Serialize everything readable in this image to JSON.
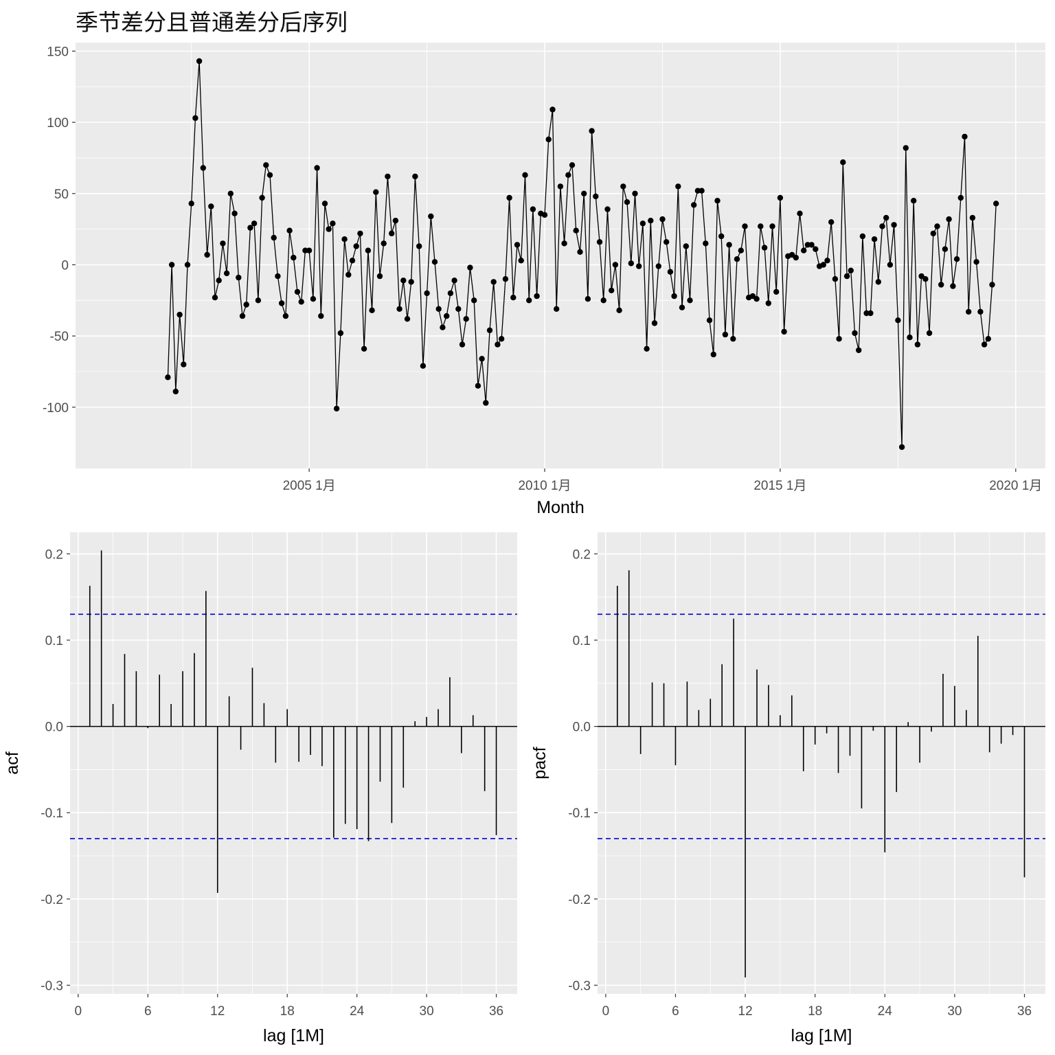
{
  "title": "季节差分且普通差分后序列",
  "colors": {
    "panel_bg": "#ebebeb",
    "grid": "#ffffff",
    "series": "#000000",
    "ci_line": "#0000cc"
  },
  "chart_data": [
    {
      "type": "line",
      "markers": true,
      "xlabel": "Month",
      "ylabel": "",
      "x_tick_labels": [
        "2005 1月",
        "2010 1月",
        "2015 1月",
        "2020 1月"
      ],
      "x_tick_values": [
        2005.0,
        2010.0,
        2015.0,
        2020.0
      ],
      "xlim": [
        2000.04,
        2020.63
      ],
      "ylim": [
        -143,
        156
      ],
      "y_ticks": [
        -100,
        -50,
        0,
        50,
        100,
        150
      ],
      "y_tick_labels": [
        "-100",
        "-50",
        "0",
        "50",
        "100",
        "150"
      ],
      "grid": true,
      "start": 2002.0,
      "step_months": 1,
      "values": [
        -79,
        0,
        -89,
        -35,
        -70,
        0,
        43,
        103,
        143,
        68,
        7,
        41,
        -23,
        -11,
        15,
        -6,
        50,
        36,
        -9,
        -36,
        -28,
        26,
        29,
        -25,
        47,
        70,
        63,
        19,
        -8,
        -27,
        -36,
        24,
        5,
        -19,
        -26,
        10,
        10,
        -24,
        68,
        -36,
        43,
        25,
        29,
        -101,
        -48,
        18,
        -7,
        3,
        13,
        22,
        -59,
        10,
        -32,
        51,
        -8,
        15,
        62,
        22,
        31,
        -31,
        -11,
        -38,
        -12,
        62,
        13,
        -71,
        -20,
        34,
        2,
        -31,
        -44,
        -36,
        -20,
        -11,
        -31,
        -56,
        -38,
        -2,
        -25,
        -85,
        -66,
        -97,
        -46,
        -12,
        -56,
        -52,
        -10,
        47,
        -23,
        14,
        3,
        63,
        -25,
        39,
        -22,
        36,
        35,
        88,
        109,
        -31,
        55,
        15,
        63,
        70,
        24,
        9,
        50,
        -24,
        94,
        48,
        16,
        -25,
        39,
        -18,
        0,
        -32,
        55,
        44,
        1,
        50,
        -1,
        29,
        -59,
        31,
        -41,
        -1,
        32,
        16,
        -5,
        -22,
        55,
        -30,
        13,
        -25,
        42,
        52,
        52,
        15,
        -39,
        -63,
        45,
        20,
        -49,
        14,
        -52,
        4,
        10,
        27,
        -23,
        -22,
        -24,
        27,
        12,
        -27,
        27,
        -19,
        47,
        -47,
        6,
        7,
        5,
        36,
        10,
        14,
        14,
        11,
        -1,
        0,
        3,
        30,
        -10,
        -52,
        72,
        -8,
        -4,
        -48,
        -60,
        20,
        -34,
        -34,
        18,
        -12,
        27,
        33,
        0,
        28,
        -39,
        -128,
        82,
        -51,
        45,
        -56,
        -8,
        -10,
        -48,
        22,
        27,
        -14,
        11,
        32,
        -15,
        4,
        47,
        90,
        -33,
        33,
        2,
        -33,
        -56,
        -52,
        -14,
        43
      ]
    },
    {
      "type": "bar",
      "xlabel": "lag [1M]",
      "ylabel": "acf",
      "xlim": [
        -0.7,
        37.8
      ],
      "ylim": [
        -0.31,
        0.225
      ],
      "x_ticks": [
        0,
        6,
        12,
        18,
        24,
        30,
        36
      ],
      "y_ticks": [
        -0.3,
        -0.2,
        -0.1,
        0.0,
        0.1,
        0.2
      ],
      "y_tick_labels": [
        "-0.3",
        "-0.2",
        "-0.1",
        "0.0",
        "0.1",
        "0.2"
      ],
      "ci": 0.13,
      "lags": [
        1,
        2,
        3,
        4,
        5,
        6,
        7,
        8,
        9,
        10,
        11,
        12,
        13,
        14,
        15,
        16,
        17,
        18,
        19,
        20,
        21,
        22,
        23,
        24,
        25,
        26,
        27,
        28,
        29,
        30,
        31,
        32,
        33,
        34,
        35,
        36
      ],
      "values": [
        0.163,
        0.204,
        0.026,
        0.084,
        0.064,
        -0.002,
        0.06,
        0.026,
        0.064,
        0.085,
        0.157,
        -0.193,
        0.035,
        -0.027,
        0.068,
        0.027,
        -0.042,
        0.02,
        -0.041,
        -0.033,
        -0.046,
        -0.129,
        -0.113,
        -0.119,
        -0.133,
        -0.064,
        -0.112,
        -0.071,
        0.006,
        0.011,
        0.02,
        0.057,
        -0.031,
        0.013,
        -0.075,
        -0.126
      ]
    },
    {
      "type": "bar",
      "xlabel": "lag [1M]",
      "ylabel": "pacf",
      "xlim": [
        -0.7,
        37.8
      ],
      "ylim": [
        -0.31,
        0.225
      ],
      "x_ticks": [
        0,
        6,
        12,
        18,
        24,
        30,
        36
      ],
      "y_ticks": [
        -0.3,
        -0.2,
        -0.1,
        0.0,
        0.1,
        0.2
      ],
      "y_tick_labels": [
        "-0.3",
        "-0.2",
        "-0.1",
        "0.0",
        "0.1",
        "0.2"
      ],
      "ci": 0.13,
      "lags": [
        1,
        2,
        3,
        4,
        5,
        6,
        7,
        8,
        9,
        10,
        11,
        12,
        13,
        14,
        15,
        16,
        17,
        18,
        19,
        20,
        21,
        22,
        23,
        24,
        25,
        26,
        27,
        28,
        29,
        30,
        31,
        32,
        33,
        34,
        35,
        36
      ],
      "values": [
        0.163,
        0.181,
        -0.032,
        0.051,
        0.05,
        -0.045,
        0.052,
        0.019,
        0.032,
        0.072,
        0.125,
        -0.291,
        0.066,
        0.048,
        0.013,
        0.036,
        -0.052,
        -0.021,
        -0.008,
        -0.054,
        -0.034,
        -0.095,
        -0.005,
        -0.146,
        -0.076,
        0.005,
        -0.042,
        -0.006,
        0.061,
        0.047,
        0.019,
        0.105,
        -0.03,
        -0.02,
        -0.01,
        -0.175
      ]
    }
  ]
}
